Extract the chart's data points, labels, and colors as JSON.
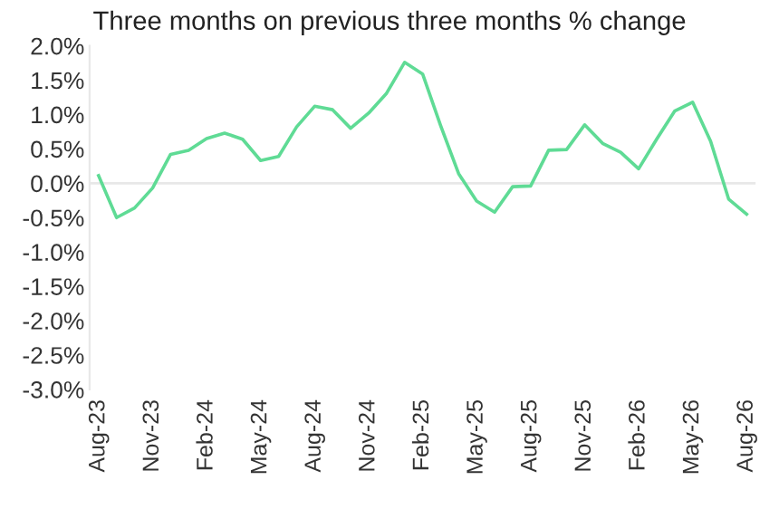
{
  "chart_data": {
    "type": "line",
    "title": "Three months on previous three months % change",
    "categories": [
      "Aug-23",
      null,
      null,
      "Nov-23",
      null,
      null,
      "Feb-24",
      null,
      null,
      "May-24",
      null,
      null,
      "Aug-24",
      null,
      null,
      "Nov-24",
      null,
      null,
      "Feb-25",
      null,
      null,
      "May-25",
      null,
      null,
      "Aug-25",
      null,
      null,
      "Nov-25",
      null,
      null,
      "Feb-26",
      null,
      null,
      "May-26",
      null,
      null,
      "Aug-26"
    ],
    "series": [
      {
        "color": "#5fdb95",
        "values": [
          0.11,
          -0.5,
          -0.36,
          -0.07,
          0.42,
          0.48,
          0.65,
          0.73,
          0.64,
          0.33,
          0.39,
          0.82,
          1.12,
          1.07,
          0.8,
          1.02,
          1.31,
          1.76,
          1.59,
          0.84,
          0.14,
          -0.26,
          -0.42,
          -0.05,
          -0.04,
          0.48,
          0.49,
          0.85,
          0.58,
          0.45,
          0.21,
          0.64,
          1.05,
          1.18,
          0.61,
          -0.23,
          -0.45
        ]
      }
    ],
    "ylim": [
      -3.0,
      2.0
    ],
    "yticks": [
      {
        "value": -3.0,
        "label": "-3.0%"
      },
      {
        "value": -2.5,
        "label": "-2.5%"
      },
      {
        "value": -2.0,
        "label": "-2.0%"
      },
      {
        "value": -1.5,
        "label": "-1.5%"
      },
      {
        "value": -1.0,
        "label": "-1.0%"
      },
      {
        "value": -0.5,
        "label": "-0.5%"
      },
      {
        "value": 0.0,
        "label": "0.0%"
      },
      {
        "value": 0.5,
        "label": "0.5%"
      },
      {
        "value": 1.0,
        "label": "1.0%"
      },
      {
        "value": 1.5,
        "label": "1.5%"
      },
      {
        "value": 2.0,
        "label": "2.0%"
      }
    ],
    "ref_lines": [
      {
        "axis": "y",
        "value": 0,
        "color": "#e8e8e8"
      }
    ],
    "grid": false,
    "legend": false,
    "marker": "none",
    "line_style": "solid"
  }
}
